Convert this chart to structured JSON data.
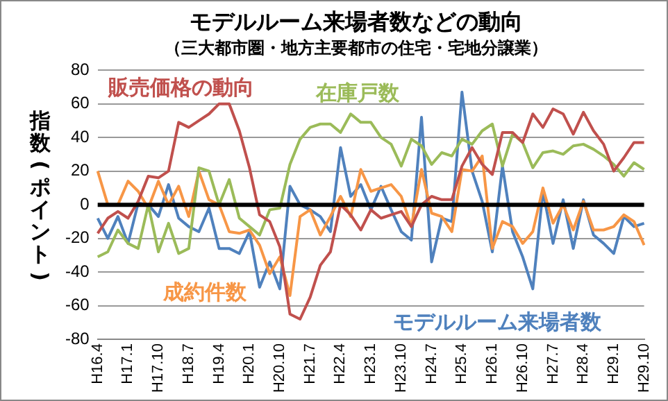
{
  "chart_data": {
    "type": "line",
    "title": "モデルルーム来場者数などの動向",
    "subtitle": "（三大都市圏・地方主要都市の住宅・宅地分譲業）",
    "ylabel": "指数(ポイント)",
    "categories": [
      "H16.4",
      null,
      null,
      "H17.1",
      null,
      null,
      "H17.10",
      null,
      null,
      "H18.7",
      null,
      null,
      "H19.4",
      null,
      null,
      "H20.1",
      null,
      null,
      "H20.10",
      null,
      null,
      "H21.7",
      null,
      null,
      "H22.4",
      null,
      null,
      "H23.1",
      null,
      null,
      "H23.10",
      null,
      null,
      "H24.7",
      null,
      null,
      "H25.4",
      null,
      null,
      "H26.1",
      null,
      null,
      "H26.10",
      null,
      null,
      "H27.7",
      null,
      null,
      "H28.4",
      null,
      null,
      "H29.1",
      null,
      null,
      "H29.10"
    ],
    "series": [
      {
        "name": "販売価格の動向",
        "color": "#c0504d",
        "values": [
          -17,
          -8,
          -4,
          -8,
          2,
          17,
          16,
          20,
          49,
          46,
          50,
          54,
          60,
          60,
          44,
          22,
          -6,
          -10,
          -25,
          -65,
          -68,
          -55,
          -36,
          -28,
          0,
          -6,
          -15,
          -3,
          -8,
          -6,
          -4,
          -13,
          0,
          5,
          3,
          3,
          23,
          34,
          24,
          18,
          43,
          43,
          37,
          54,
          46,
          57,
          54,
          42,
          55,
          44,
          36,
          20,
          28,
          37,
          37
        ]
      },
      {
        "name": "在庫戸数",
        "color": "#9bbb59",
        "values": [
          -31,
          -28,
          -15,
          -23,
          -26,
          0,
          -28,
          -11,
          -29,
          -26,
          22,
          20,
          0,
          15,
          -8,
          -13,
          -18,
          -3,
          -2,
          24,
          39,
          46,
          48,
          48,
          43,
          54,
          49,
          49,
          40,
          36,
          23,
          39,
          35,
          24,
          31,
          29,
          39,
          36,
          44,
          48,
          23,
          42,
          37,
          22,
          31,
          32,
          30,
          35,
          36,
          33,
          29,
          24,
          17,
          25,
          21
        ]
      },
      {
        "name": "成約件数",
        "color": "#f79646",
        "values": [
          20,
          0,
          0,
          14,
          8,
          -2,
          14,
          0,
          11,
          -7,
          20,
          3,
          0,
          -16,
          -17,
          -15,
          -24,
          -41,
          -31,
          -54,
          -7,
          -3,
          -18,
          -7,
          5,
          -7,
          21,
          8,
          10,
          12,
          5,
          -13,
          21,
          -5,
          -7,
          -16,
          21,
          20,
          29,
          -26,
          -10,
          -13,
          -23,
          -16,
          10,
          -11,
          0,
          -15,
          2,
          -15,
          -15,
          -13,
          -6,
          -10,
          -24
        ]
      },
      {
        "name": "モデルルーム来場者数",
        "color": "#4f81bd",
        "values": [
          -8,
          -20,
          -7,
          -23,
          1,
          0,
          -7,
          12,
          -8,
          -13,
          -16,
          -2,
          -26,
          -26,
          -29,
          -16,
          -49,
          -34,
          -50,
          11,
          0,
          -3,
          -7,
          -16,
          34,
          5,
          12,
          -3,
          11,
          -3,
          -16,
          -21,
          52,
          -34,
          -8,
          -10,
          67,
          20,
          2,
          -28,
          23,
          -16,
          -31,
          -50,
          8,
          -23,
          3,
          -26,
          3,
          -18,
          -23,
          -29,
          -7,
          -13,
          -11
        ]
      }
    ],
    "ylim": [
      -80,
      80
    ],
    "yticks": [
      -80,
      -60,
      -40,
      -20,
      0,
      20,
      40,
      60,
      80
    ],
    "grid": "y",
    "legend": false,
    "marker": "none",
    "line_style": "solid",
    "ref_lines": [
      {
        "axis": "y",
        "value": 0,
        "color": "#000000"
      }
    ]
  }
}
